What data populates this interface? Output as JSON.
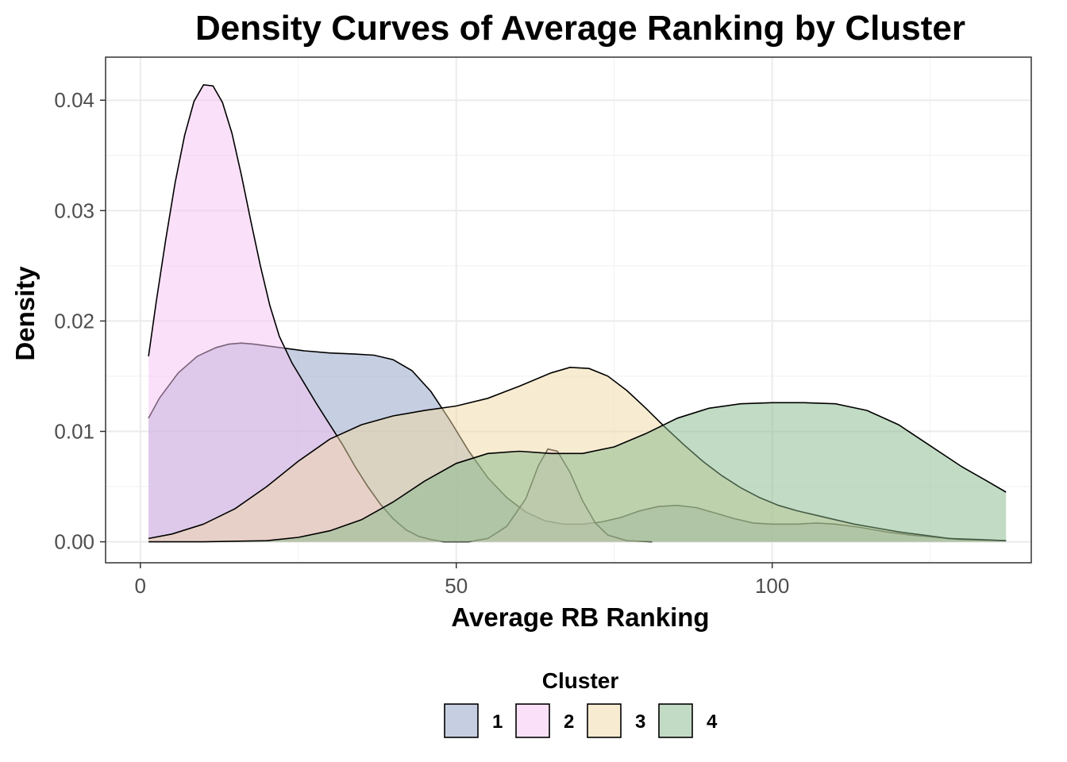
{
  "chart_data": {
    "type": "area",
    "title": "Density Curves of Average Ranking by Cluster",
    "xlabel": "Average RB Ranking",
    "ylabel": "Density",
    "xlim": [
      -5.5,
      141
    ],
    "ylim": [
      -0.0019,
      0.0439
    ],
    "x_ticks": [
      0,
      50,
      100
    ],
    "x_tick_labels": [
      "0",
      "50",
      "100"
    ],
    "y_ticks": [
      0,
      0.01,
      0.02,
      0.03,
      0.04
    ],
    "y_tick_labels": [
      "0.00",
      "0.01",
      "0.02",
      "0.03",
      "0.04"
    ],
    "grid": true,
    "legend": {
      "title": "Cluster",
      "position": "bottom"
    },
    "series": [
      {
        "name": "1",
        "fill": "#8e9dc4",
        "points": [
          [
            1.3,
            0.0112
          ],
          [
            3,
            0.013
          ],
          [
            6,
            0.0153
          ],
          [
            9,
            0.0168
          ],
          [
            12,
            0.0176
          ],
          [
            14,
            0.0179
          ],
          [
            16,
            0.018
          ],
          [
            18,
            0.0179
          ],
          [
            22,
            0.0176
          ],
          [
            26,
            0.0173
          ],
          [
            30,
            0.0171
          ],
          [
            34,
            0.017
          ],
          [
            37,
            0.0169
          ],
          [
            40,
            0.0165
          ],
          [
            43,
            0.0155
          ],
          [
            46,
            0.0136
          ],
          [
            49,
            0.011
          ],
          [
            52,
            0.0082
          ],
          [
            55,
            0.0058
          ],
          [
            58,
            0.004
          ],
          [
            61,
            0.0027
          ],
          [
            64,
            0.0019
          ],
          [
            67,
            0.0016
          ],
          [
            70,
            0.0016
          ],
          [
            73,
            0.0018
          ],
          [
            76,
            0.0022
          ],
          [
            79,
            0.0028
          ],
          [
            82,
            0.0032
          ],
          [
            85,
            0.0033
          ],
          [
            88,
            0.0031
          ],
          [
            91,
            0.0026
          ],
          [
            94,
            0.0021
          ],
          [
            97,
            0.0017
          ],
          [
            100,
            0.0016
          ],
          [
            104,
            0.0016
          ],
          [
            107,
            0.0017
          ],
          [
            110,
            0.0016
          ],
          [
            114,
            0.0013
          ],
          [
            118,
            0.0009
          ],
          [
            122,
            0.0006
          ],
          [
            126,
            0.0004
          ],
          [
            130,
            0.0002
          ],
          [
            137,
            0.0001
          ]
        ]
      },
      {
        "name": "2",
        "fill": "#f5c4f4",
        "points": [
          [
            1.3,
            0.0168
          ],
          [
            2.5,
            0.0217
          ],
          [
            4,
            0.0273
          ],
          [
            5.5,
            0.0325
          ],
          [
            7,
            0.0368
          ],
          [
            8.5,
            0.0399
          ],
          [
            10,
            0.0414
          ],
          [
            11.5,
            0.0413
          ],
          [
            13,
            0.0398
          ],
          [
            14.5,
            0.037
          ],
          [
            16,
            0.0332
          ],
          [
            17.5,
            0.029
          ],
          [
            19,
            0.025
          ],
          [
            20.5,
            0.0214
          ],
          [
            22,
            0.0186
          ],
          [
            24,
            0.0162
          ],
          [
            26,
            0.0143
          ],
          [
            28,
            0.0124
          ],
          [
            30,
            0.0106
          ],
          [
            32,
            0.0088
          ],
          [
            34,
            0.0068
          ],
          [
            36,
            0.005
          ],
          [
            38,
            0.0034
          ],
          [
            40,
            0.0021
          ],
          [
            42,
            0.0011
          ],
          [
            44,
            0.0005
          ],
          [
            46,
            0.0002
          ],
          [
            48,
            0.0
          ],
          [
            52,
            0.0
          ],
          [
            55,
            0.0003
          ],
          [
            58,
            0.0014
          ],
          [
            61,
            0.0039
          ],
          [
            63,
            0.0069
          ],
          [
            64.5,
            0.0084
          ],
          [
            66,
            0.0082
          ],
          [
            68,
            0.0063
          ],
          [
            70,
            0.0037
          ],
          [
            72,
            0.0017
          ],
          [
            74,
            0.0006
          ],
          [
            77,
            0.0001
          ],
          [
            81,
            0.0
          ]
        ]
      },
      {
        "name": "3",
        "fill": "#f0d8a4",
        "points": [
          [
            1.3,
            0.0003
          ],
          [
            5,
            0.0007
          ],
          [
            10,
            0.0016
          ],
          [
            15,
            0.003
          ],
          [
            20,
            0.005
          ],
          [
            25,
            0.0073
          ],
          [
            30,
            0.0093
          ],
          [
            35,
            0.0106
          ],
          [
            40,
            0.0114
          ],
          [
            45,
            0.0119
          ],
          [
            50,
            0.0123
          ],
          [
            55,
            0.013
          ],
          [
            60,
            0.0141
          ],
          [
            65,
            0.0153
          ],
          [
            68,
            0.0158
          ],
          [
            71,
            0.0157
          ],
          [
            74,
            0.015
          ],
          [
            77,
            0.0137
          ],
          [
            80,
            0.0121
          ],
          [
            83,
            0.0104
          ],
          [
            86,
            0.0088
          ],
          [
            89,
            0.0073
          ],
          [
            92,
            0.006
          ],
          [
            95,
            0.0049
          ],
          [
            98,
            0.004
          ],
          [
            101,
            0.0033
          ],
          [
            104,
            0.0028
          ],
          [
            107,
            0.0024
          ],
          [
            110,
            0.002
          ],
          [
            113,
            0.0016
          ],
          [
            116,
            0.0013
          ],
          [
            120,
            0.0009
          ],
          [
            124,
            0.0006
          ],
          [
            128,
            0.0003
          ],
          [
            133,
            0.0002
          ],
          [
            137,
            0.0001
          ]
        ]
      },
      {
        "name": "4",
        "fill": "#86b88a",
        "points": [
          [
            1.3,
            0.0
          ],
          [
            10,
            0.0
          ],
          [
            20,
            0.0001
          ],
          [
            25,
            0.0004
          ],
          [
            30,
            0.001
          ],
          [
            35,
            0.002
          ],
          [
            40,
            0.0036
          ],
          [
            45,
            0.0055
          ],
          [
            50,
            0.0071
          ],
          [
            55,
            0.008
          ],
          [
            60,
            0.0082
          ],
          [
            65,
            0.008
          ],
          [
            70,
            0.008
          ],
          [
            75,
            0.0086
          ],
          [
            80,
            0.0098
          ],
          [
            85,
            0.0112
          ],
          [
            90,
            0.0121
          ],
          [
            95,
            0.0125
          ],
          [
            100,
            0.0126
          ],
          [
            105,
            0.0126
          ],
          [
            110,
            0.0125
          ],
          [
            115,
            0.0119
          ],
          [
            120,
            0.0106
          ],
          [
            125,
            0.0087
          ],
          [
            130,
            0.0068
          ],
          [
            134,
            0.0055
          ],
          [
            137,
            0.0045
          ]
        ]
      }
    ]
  }
}
